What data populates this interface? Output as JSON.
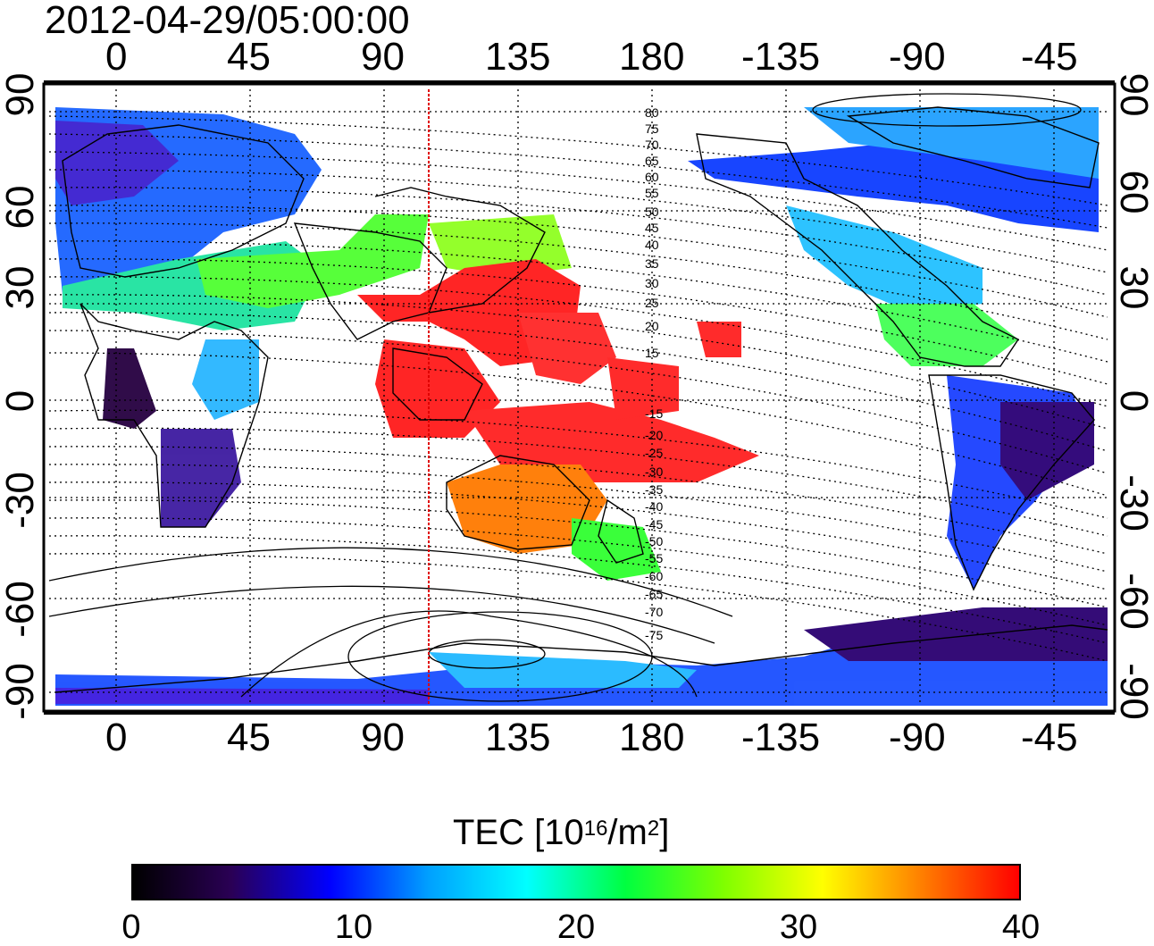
{
  "title": "2012-04-29/05:00:00",
  "map": {
    "x_ticks_top": [
      "0",
      "45",
      "90",
      "135",
      "180",
      "-135",
      "-90",
      "-45"
    ],
    "x_ticks_bottom": [
      "0",
      "45",
      "90",
      "135",
      "180",
      "-135",
      "-90",
      "-45"
    ],
    "y_ticks_left": [
      "90",
      "60",
      "30",
      "0",
      "-30",
      "-60",
      "-90"
    ],
    "y_ticks_right": [
      "90",
      "60",
      "30",
      "0",
      "-30",
      "-60",
      "-90"
    ],
    "meridian_line_color": "#e00000",
    "mlat_labels": [
      "80",
      "75",
      "70",
      "65",
      "60",
      "55",
      "50",
      "45",
      "40",
      "35",
      "30",
      "25",
      "20",
      "15",
      "-15",
      "-20",
      "-25",
      "-30",
      "-35",
      "-40",
      "-45",
      "-50",
      "-55",
      "-60",
      "-65",
      "-70",
      "-75"
    ]
  },
  "colorbar": {
    "title_main": "TEC  [10",
    "title_exp": "16",
    "title_mid": "/m",
    "title_exp2": "2",
    "title_end": "]",
    "ticks": [
      "0",
      "10",
      "20",
      "30",
      "40"
    ],
    "colors": [
      "#000000",
      "#2a0055",
      "#0000ff",
      "#00a0ff",
      "#00ffff",
      "#00ff40",
      "#7fff00",
      "#ffff00",
      "#ff8000",
      "#ff0000"
    ]
  }
}
